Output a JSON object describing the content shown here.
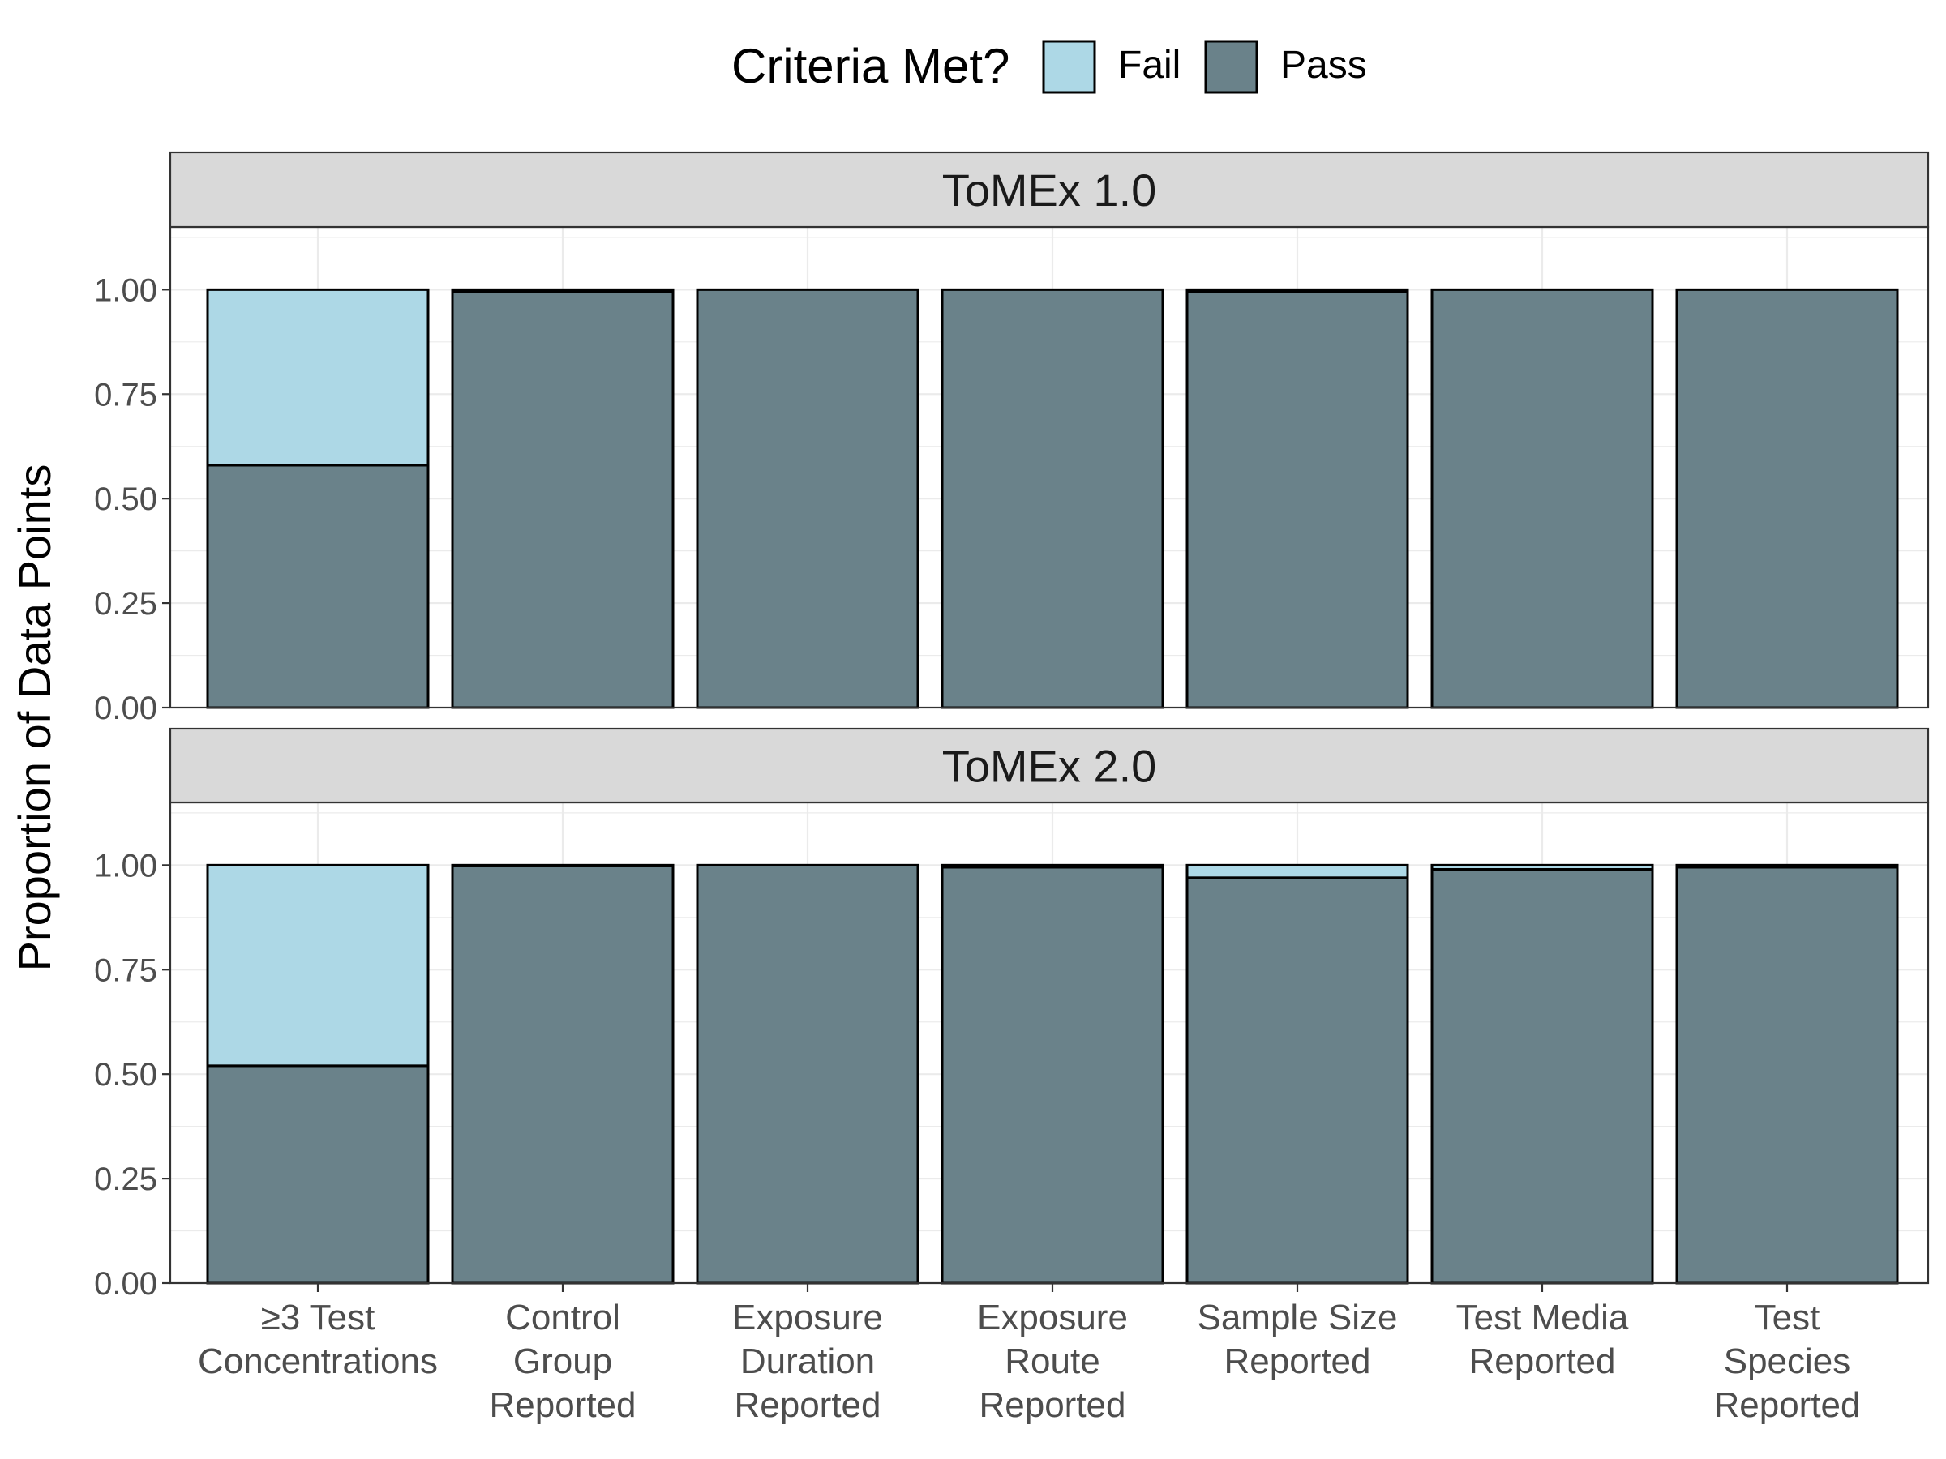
{
  "chart_data": {
    "type": "bar",
    "stacked": true,
    "ylabel": "Proportion of Data Points",
    "legend": {
      "title": "Criteria Met?",
      "position": "top",
      "entries": [
        {
          "key": "fail",
          "label": "Fail"
        },
        {
          "key": "pass",
          "label": "Pass"
        }
      ]
    },
    "colors": {
      "fail": "#ADD8E6",
      "pass": "#6A828A",
      "strip": "#D9D9D9",
      "grid": "#EBEBEB"
    },
    "ylim": [
      0,
      1.15
    ],
    "yticks": [
      0,
      0.25,
      0.5,
      0.75,
      1.0
    ],
    "ytick_labels": [
      "0.00",
      "0.25",
      "0.50",
      "0.75",
      "1.00"
    ],
    "grid": true,
    "categories": [
      [
        "≥3 Test",
        "Concentrations"
      ],
      [
        "Control",
        "Group",
        "Reported"
      ],
      [
        "Exposure",
        "Duration",
        "Reported"
      ],
      [
        "Exposure",
        "Route",
        "Reported"
      ],
      [
        "Sample Size",
        "Reported"
      ],
      [
        "Test Media",
        "Reported"
      ],
      [
        "Test",
        "Species",
        "Reported"
      ]
    ],
    "panels": [
      {
        "title": "ToMEx 1.0",
        "series": [
          {
            "name": "Pass",
            "key": "pass",
            "values": [
              0.58,
              0.995,
              1.0,
              1.0,
              0.995,
              1.0,
              1.0
            ]
          },
          {
            "name": "Fail",
            "key": "fail",
            "values": [
              0.42,
              0.005,
              0.0,
              0.0,
              0.005,
              0.0,
              0.0
            ]
          }
        ]
      },
      {
        "title": "ToMEx 2.0",
        "series": [
          {
            "name": "Pass",
            "key": "pass",
            "values": [
              0.52,
              0.998,
              1.0,
              0.995,
              0.97,
              0.99,
              0.995
            ]
          },
          {
            "name": "Fail",
            "key": "fail",
            "values": [
              0.48,
              0.002,
              0.0,
              0.005,
              0.03,
              0.01,
              0.005
            ]
          }
        ]
      }
    ]
  }
}
